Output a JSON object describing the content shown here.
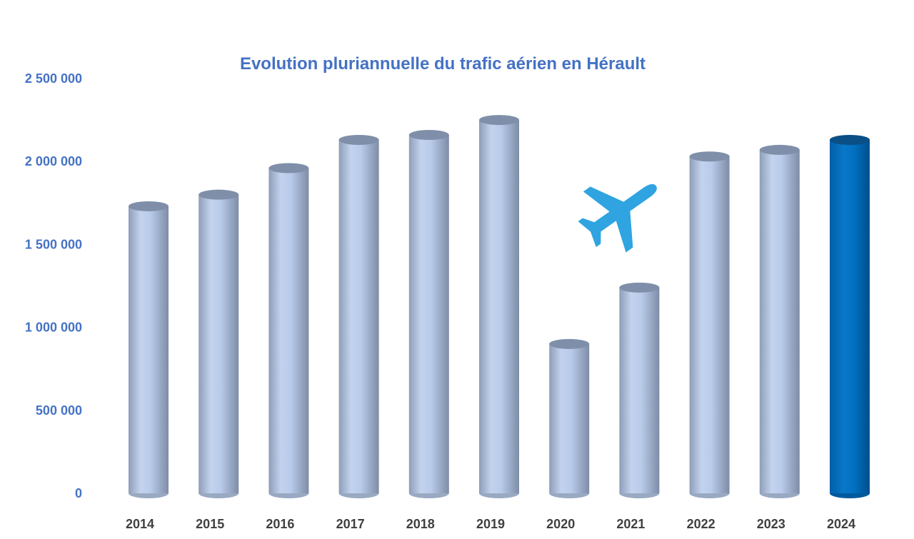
{
  "chart_data": {
    "type": "bar",
    "title": "Evolution pluriannuelle du trafic aérien en Hérault",
    "xlabel": "",
    "ylabel": "",
    "categories": [
      "2014",
      "2015",
      "2016",
      "2017",
      "2018",
      "2019",
      "2020",
      "2021",
      "2022",
      "2023",
      "2024"
    ],
    "values": [
      1730000,
      1800000,
      1960000,
      2130000,
      2160000,
      2250000,
      900000,
      1240000,
      2030000,
      2070000,
      2130000
    ],
    "highlight_category": "2024",
    "ylim": [
      0,
      2500000
    ],
    "y_ticks": [
      {
        "value": 0,
        "label": "0"
      },
      {
        "value": 500000,
        "label": "500 000"
      },
      {
        "value": 1000000,
        "label": "1 000 000"
      },
      {
        "value": 1500000,
        "label": "1 500 000"
      },
      {
        "value": 2000000,
        "label": "2 000 000"
      },
      {
        "value": 2500000,
        "label": "2 500 000"
      }
    ],
    "grid": false,
    "legend": "none",
    "bar_style": "3d-cylinder",
    "decoration_icon": "airplane-icon",
    "colors": {
      "title": "#4472C4",
      "y_tick_labels": "#4472C4",
      "x_tick_labels": "#404040",
      "bar": "#B4C7E7",
      "bar_shade": "#7F8FA9",
      "bar_highlight": "#0070C0",
      "airplane": "#2FA4E0"
    }
  }
}
